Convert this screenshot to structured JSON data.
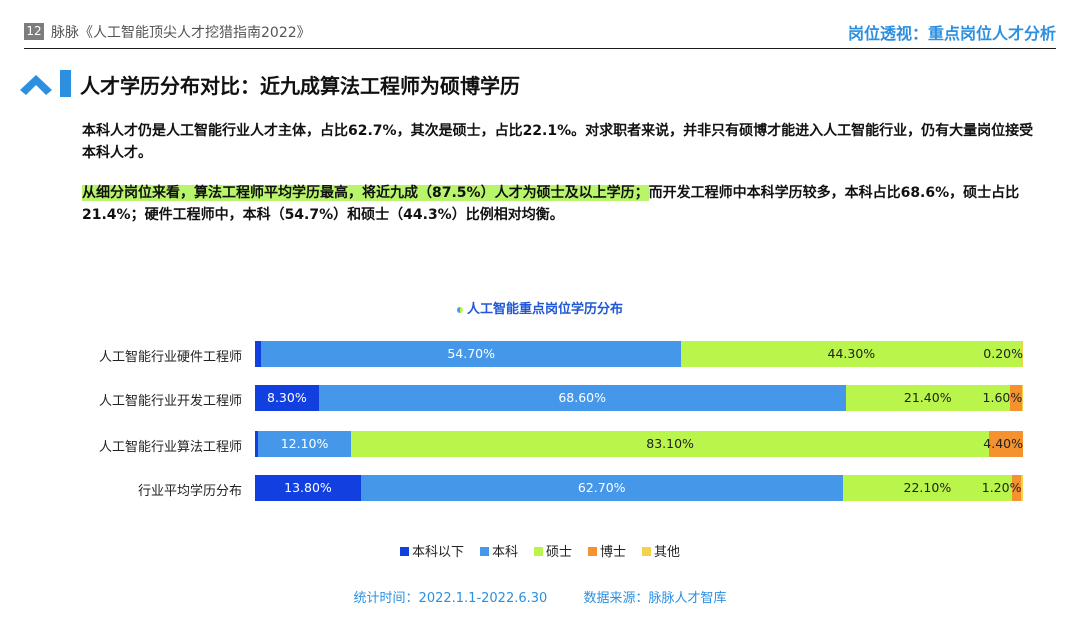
{
  "header": {
    "page_number": "12",
    "doc_title": "脉脉《人工智能顶尖人才挖猎指南2022》",
    "section_title": "岗位透视：重点岗位人才分析"
  },
  "heading": "人才学历分布对比：近九成算法工程师为硕博学历",
  "paragraph1": "本科人才仍是人工智能行业人才主体，占比62.7%，其次是硕士，占比22.1%。对求职者来说，并非只有硕博才能进入人工智能行业，仍有大量岗位接受本科人才。",
  "paragraph2_highlight": "从细分岗位来看，算法工程师平均学历最高，将近九成（87.5%）人才为硕士及以上学历；",
  "paragraph2_rest": "而开发工程师中本科学历较多，本科占比68.6%，硕士占比21.4%；硬件工程师中，本科（54.7%）和硕士（44.3%）比例相对均衡。",
  "colors": {
    "accent": "#2d8fe0",
    "highlight": "#b9f56a",
    "below_bachelor": "#1240e0",
    "bachelor": "#4597ea",
    "master": "#b9f54a",
    "phd": "#f4922f",
    "other": "#f5d24c"
  },
  "chart_data": {
    "type": "bar",
    "orientation": "horizontal",
    "stacked": "percent",
    "title": "人工智能重点岗位学历分布",
    "categories": [
      "人工智能行业硬件工程师",
      "人工智能行业开发工程师",
      "人工智能行业算法工程师",
      "行业平均学历分布"
    ],
    "series": [
      {
        "name": "本科以下",
        "color": "#1240e0",
        "values": [
          0.8,
          8.3,
          0.4,
          13.8
        ],
        "labels": [
          "",
          "8.30%",
          "",
          "13.80%"
        ]
      },
      {
        "name": "本科",
        "color": "#4597ea",
        "values": [
          54.7,
          68.6,
          12.1,
          62.7
        ],
        "labels": [
          "54.70%",
          "68.60%",
          "12.10%",
          "62.70%"
        ]
      },
      {
        "name": "硕士",
        "color": "#b9f54a",
        "values": [
          44.3,
          21.4,
          83.1,
          22.1
        ],
        "labels": [
          "44.30%",
          "21.40%",
          "83.10%",
          "22.10%"
        ]
      },
      {
        "name": "博士",
        "color": "#f4922f",
        "values": [
          0.0,
          1.6,
          4.4,
          1.2
        ],
        "labels": [
          "",
          "1.60%",
          "4.40%",
          "1.20%"
        ]
      },
      {
        "name": "其他",
        "color": "#f5d24c",
        "values": [
          0.2,
          0.1,
          0.0,
          0.2
        ],
        "labels": [
          "0.20%",
          "",
          "",
          ""
        ]
      }
    ],
    "xlim": [
      0,
      100
    ],
    "legend_position": "bottom"
  },
  "footer": {
    "period": "统计时间：2022.1.1-2022.6.30",
    "source": "数据来源：脉脉人才智库"
  }
}
